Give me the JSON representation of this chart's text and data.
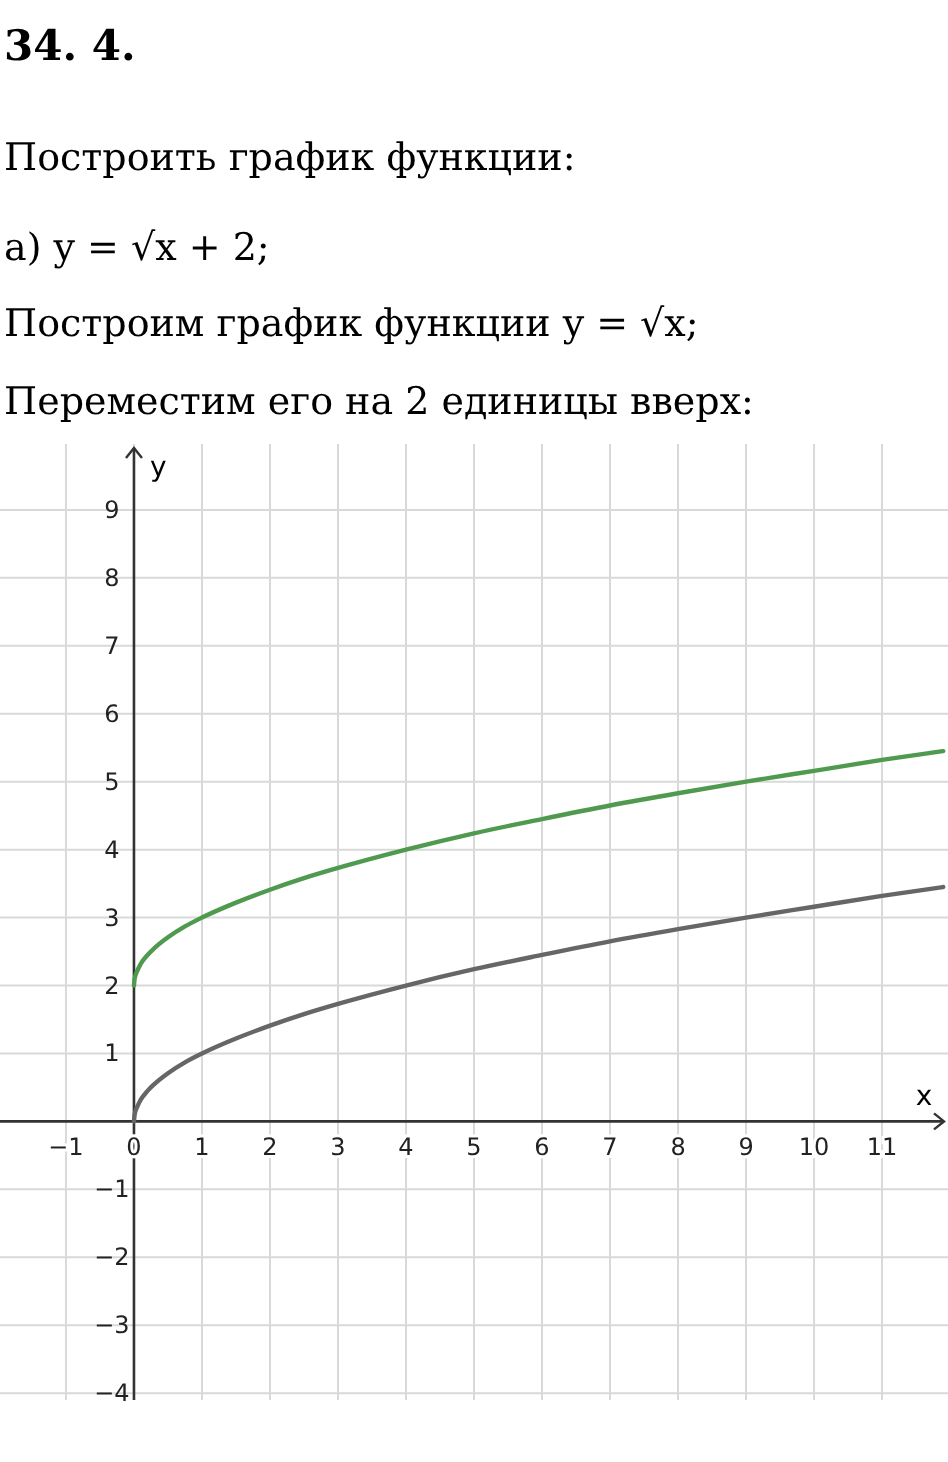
{
  "chart_data": {
    "type": "line",
    "title": "34. 4.",
    "annotations": [
      "Построить график функции:",
      "а) y = √x + 2;",
      "Построим график функции y = √x;",
      "Переместим его на 2 единицы вверх:"
    ],
    "xlabel": "x",
    "ylabel": "y",
    "xlim": [
      -1.97,
      11.97
    ],
    "ylim": [
      -4.1,
      9.97
    ],
    "xticks": [
      -1,
      0,
      1,
      2,
      3,
      4,
      5,
      6,
      7,
      8,
      9,
      10,
      11
    ],
    "yticks": [
      -4,
      -3,
      -2,
      -1,
      1,
      2,
      3,
      4,
      5,
      6,
      7,
      8,
      9
    ],
    "grid": true,
    "marker": "none",
    "line_style": "solid",
    "series": [
      {
        "color": "#666666",
        "x": [
          0,
          0.01,
          0.05,
          0.1,
          0.2,
          0.3,
          0.5,
          0.75,
          1,
          1.5,
          2,
          2.5,
          3,
          4,
          5,
          6,
          7,
          8,
          9,
          10,
          11,
          11.9
        ],
        "values": [
          0,
          0.1,
          0.22,
          0.32,
          0.45,
          0.55,
          0.71,
          0.87,
          1,
          1.22,
          1.41,
          1.58,
          1.73,
          2,
          2.24,
          2.45,
          2.65,
          2.83,
          3,
          3.16,
          3.32,
          3.45
        ]
      },
      {
        "color": "#4f9a4f",
        "x": [
          0,
          0.01,
          0.05,
          0.1,
          0.2,
          0.3,
          0.5,
          0.75,
          1,
          1.5,
          2,
          2.5,
          3,
          4,
          5,
          6,
          7,
          8,
          9,
          10,
          11,
          11.9
        ],
        "values": [
          2,
          2.1,
          2.22,
          2.32,
          2.45,
          2.55,
          2.71,
          2.87,
          3,
          3.22,
          3.41,
          3.58,
          3.73,
          4,
          4.24,
          4.45,
          4.65,
          4.83,
          5,
          5.16,
          5.32,
          5.45
        ]
      }
    ]
  }
}
